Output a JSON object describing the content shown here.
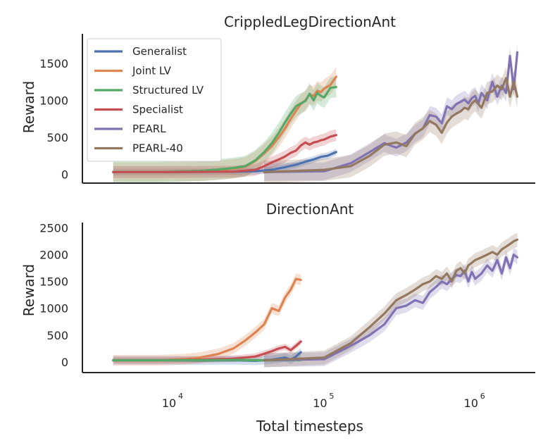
{
  "chart_data": [
    {
      "type": "line",
      "title": "CrippledLegDirectionAnt",
      "ylabel": "Reward",
      "xscale": "log",
      "xlim": [
        2500,
        2500000
      ],
      "ylim": [
        -120,
        1900
      ],
      "yticks": [
        0,
        500,
        1000,
        1500
      ],
      "legend": "top-left",
      "series": [
        {
          "name": "Generalist",
          "color": "#4c72b0",
          "x": [
            4000,
            8000,
            15000,
            25000,
            35000,
            45000,
            55000,
            65000,
            75000,
            85000,
            95000,
            105000,
            120000
          ],
          "y": [
            30,
            30,
            32,
            34,
            40,
            60,
            95,
            130,
            170,
            200,
            235,
            250,
            300
          ],
          "band": 45
        },
        {
          "name": "Joint LV",
          "color": "#dd8452",
          "x": [
            4000,
            8000,
            15000,
            20000,
            25000,
            30000,
            35000,
            40000,
            45000,
            50000,
            55000,
            60000,
            65000,
            70000,
            75000,
            80000,
            85000,
            90000,
            95000,
            100000,
            110000,
            120000
          ],
          "y": [
            30,
            30,
            40,
            55,
            75,
            100,
            180,
            280,
            380,
            500,
            620,
            750,
            860,
            950,
            1000,
            1080,
            1060,
            1130,
            1110,
            1160,
            1210,
            1320
          ],
          "band": 130
        },
        {
          "name": "Structured LV",
          "color": "#55a868",
          "x": [
            4000,
            8000,
            15000,
            20000,
            25000,
            30000,
            35000,
            40000,
            45000,
            50000,
            55000,
            60000,
            65000,
            70000,
            75000,
            80000,
            85000,
            90000,
            95000,
            100000,
            110000,
            120000
          ],
          "y": [
            30,
            30,
            45,
            65,
            85,
            110,
            190,
            300,
            420,
            560,
            700,
            820,
            920,
            960,
            990,
            1090,
            1000,
            1100,
            1060,
            1040,
            1170,
            1180
          ],
          "band": 140
        },
        {
          "name": "Specialist",
          "color": "#c44e52",
          "x": [
            4000,
            8000,
            15000,
            25000,
            35000,
            40000,
            45000,
            50000,
            55000,
            60000,
            65000,
            70000,
            75000,
            80000,
            85000,
            90000,
            95000,
            100000,
            110000,
            120000
          ],
          "y": [
            30,
            30,
            32,
            35,
            60,
            110,
            160,
            200,
            240,
            290,
            320,
            390,
            430,
            400,
            430,
            440,
            460,
            470,
            510,
            530
          ],
          "band": 80
        },
        {
          "name": "PEARL",
          "color": "#8172b3",
          "x": [
            40000,
            100000,
            150000,
            200000,
            250000,
            300000,
            350000,
            400000,
            450000,
            500000,
            550000,
            600000,
            650000,
            700000,
            750000,
            800000,
            850000,
            900000,
            950000,
            1000000,
            1050000,
            1100000,
            1200000,
            1300000,
            1400000,
            1500000,
            1600000,
            1700000,
            1800000,
            1900000
          ],
          "y": [
            30,
            40,
            150,
            300,
            420,
            360,
            430,
            550,
            620,
            800,
            780,
            690,
            920,
            880,
            950,
            980,
            1010,
            960,
            1030,
            1060,
            960,
            1100,
            1000,
            1250,
            1050,
            1200,
            1100,
            1600,
            1150,
            1650
          ],
          "band": 120
        },
        {
          "name": "PEARL-40",
          "color": "#937860",
          "x": [
            40000,
            100000,
            150000,
            200000,
            250000,
            300000,
            350000,
            400000,
            450000,
            500000,
            550000,
            600000,
            650000,
            700000,
            750000,
            800000,
            850000,
            900000,
            950000,
            1000000,
            1100000,
            1200000,
            1300000,
            1400000,
            1500000,
            1600000,
            1700000,
            1800000,
            1900000
          ],
          "y": [
            30,
            60,
            110,
            250,
            400,
            430,
            380,
            550,
            620,
            720,
            670,
            560,
            700,
            780,
            820,
            850,
            900,
            880,
            960,
            1000,
            900,
            1100,
            1120,
            1200,
            1150,
            1300,
            1050,
            1250,
            1050
          ],
          "band": 150
        }
      ]
    },
    {
      "type": "line",
      "title": "DirectionAnt",
      "ylabel": "Reward",
      "xscale": "log",
      "xlim": [
        2500,
        2500000
      ],
      "ylim": [
        -200,
        2600
      ],
      "yticks": [
        0,
        500,
        1000,
        1500,
        2000,
        2500
      ],
      "xticks": [
        {
          "base": "10",
          "exp": "4",
          "value": 10000
        },
        {
          "base": "10",
          "exp": "5",
          "value": 100000
        },
        {
          "base": "10",
          "exp": "6",
          "value": 1000000
        }
      ],
      "xlabel": "Total timesteps",
      "series": [
        {
          "name": "Generalist",
          "color": "#4c72b0",
          "x": [
            4000,
            8000,
            15000,
            25000,
            35000,
            45000,
            50000,
            55000,
            60000,
            65000,
            70000
          ],
          "y": [
            30,
            30,
            25,
            30,
            20,
            40,
            60,
            80,
            40,
            100,
            180
          ],
          "band": 80
        },
        {
          "name": "Joint LV",
          "color": "#dd8452",
          "x": [
            4000,
            8000,
            12000,
            15000,
            20000,
            25000,
            30000,
            35000,
            40000,
            45000,
            50000,
            55000,
            60000,
            65000,
            70000
          ],
          "y": [
            30,
            30,
            50,
            80,
            150,
            250,
            400,
            550,
            700,
            1000,
            950,
            1200,
            1350,
            1550,
            1530
          ],
          "band": 100
        },
        {
          "name": "Specialist",
          "color": "#c44e52",
          "x": [
            4000,
            8000,
            15000,
            25000,
            35000,
            40000,
            45000,
            50000,
            55000,
            60000,
            65000,
            70000
          ],
          "y": [
            30,
            30,
            40,
            60,
            100,
            150,
            200,
            250,
            280,
            220,
            300,
            380
          ],
          "band": 60
        },
        {
          "name": "Structured LV",
          "color": "#55a868",
          "x": [
            4000,
            8000,
            15000,
            25000,
            35000,
            45000,
            55000,
            65000,
            70000
          ],
          "y": [
            30,
            30,
            30,
            35,
            30,
            30,
            35,
            35,
            35
          ],
          "band": 30
        },
        {
          "name": "PEARL",
          "color": "#8172b3",
          "x": [
            40000,
            100000,
            150000,
            200000,
            250000,
            300000,
            350000,
            400000,
            450000,
            500000,
            550000,
            600000,
            650000,
            700000,
            750000,
            800000,
            850000,
            900000,
            950000,
            1000000,
            1100000,
            1200000,
            1300000,
            1400000,
            1500000,
            1600000,
            1700000,
            1800000,
            1900000
          ],
          "y": [
            30,
            50,
            300,
            500,
            700,
            1000,
            1050,
            1150,
            1100,
            1300,
            1400,
            1500,
            1450,
            1550,
            1620,
            1600,
            1700,
            1500,
            1680,
            1550,
            1650,
            1800,
            1700,
            1900,
            1650,
            1950,
            1750,
            2000,
            1950
          ],
          "band": 130
        },
        {
          "name": "PEARL-40",
          "color": "#937860",
          "x": [
            40000,
            100000,
            150000,
            200000,
            250000,
            300000,
            350000,
            400000,
            450000,
            500000,
            550000,
            600000,
            650000,
            700000,
            750000,
            800000,
            850000,
            900000,
            950000,
            1000000,
            1100000,
            1200000,
            1300000,
            1400000,
            1500000,
            1600000,
            1700000,
            1800000,
            1900000
          ],
          "y": [
            30,
            80,
            350,
            650,
            900,
            1150,
            1250,
            1350,
            1450,
            1500,
            1600,
            1550,
            1650,
            1500,
            1700,
            1750,
            1650,
            1800,
            1850,
            1900,
            1950,
            2000,
            2050,
            2000,
            2100,
            2150,
            2200,
            2250,
            2280
          ],
          "band": 130
        }
      ]
    }
  ]
}
